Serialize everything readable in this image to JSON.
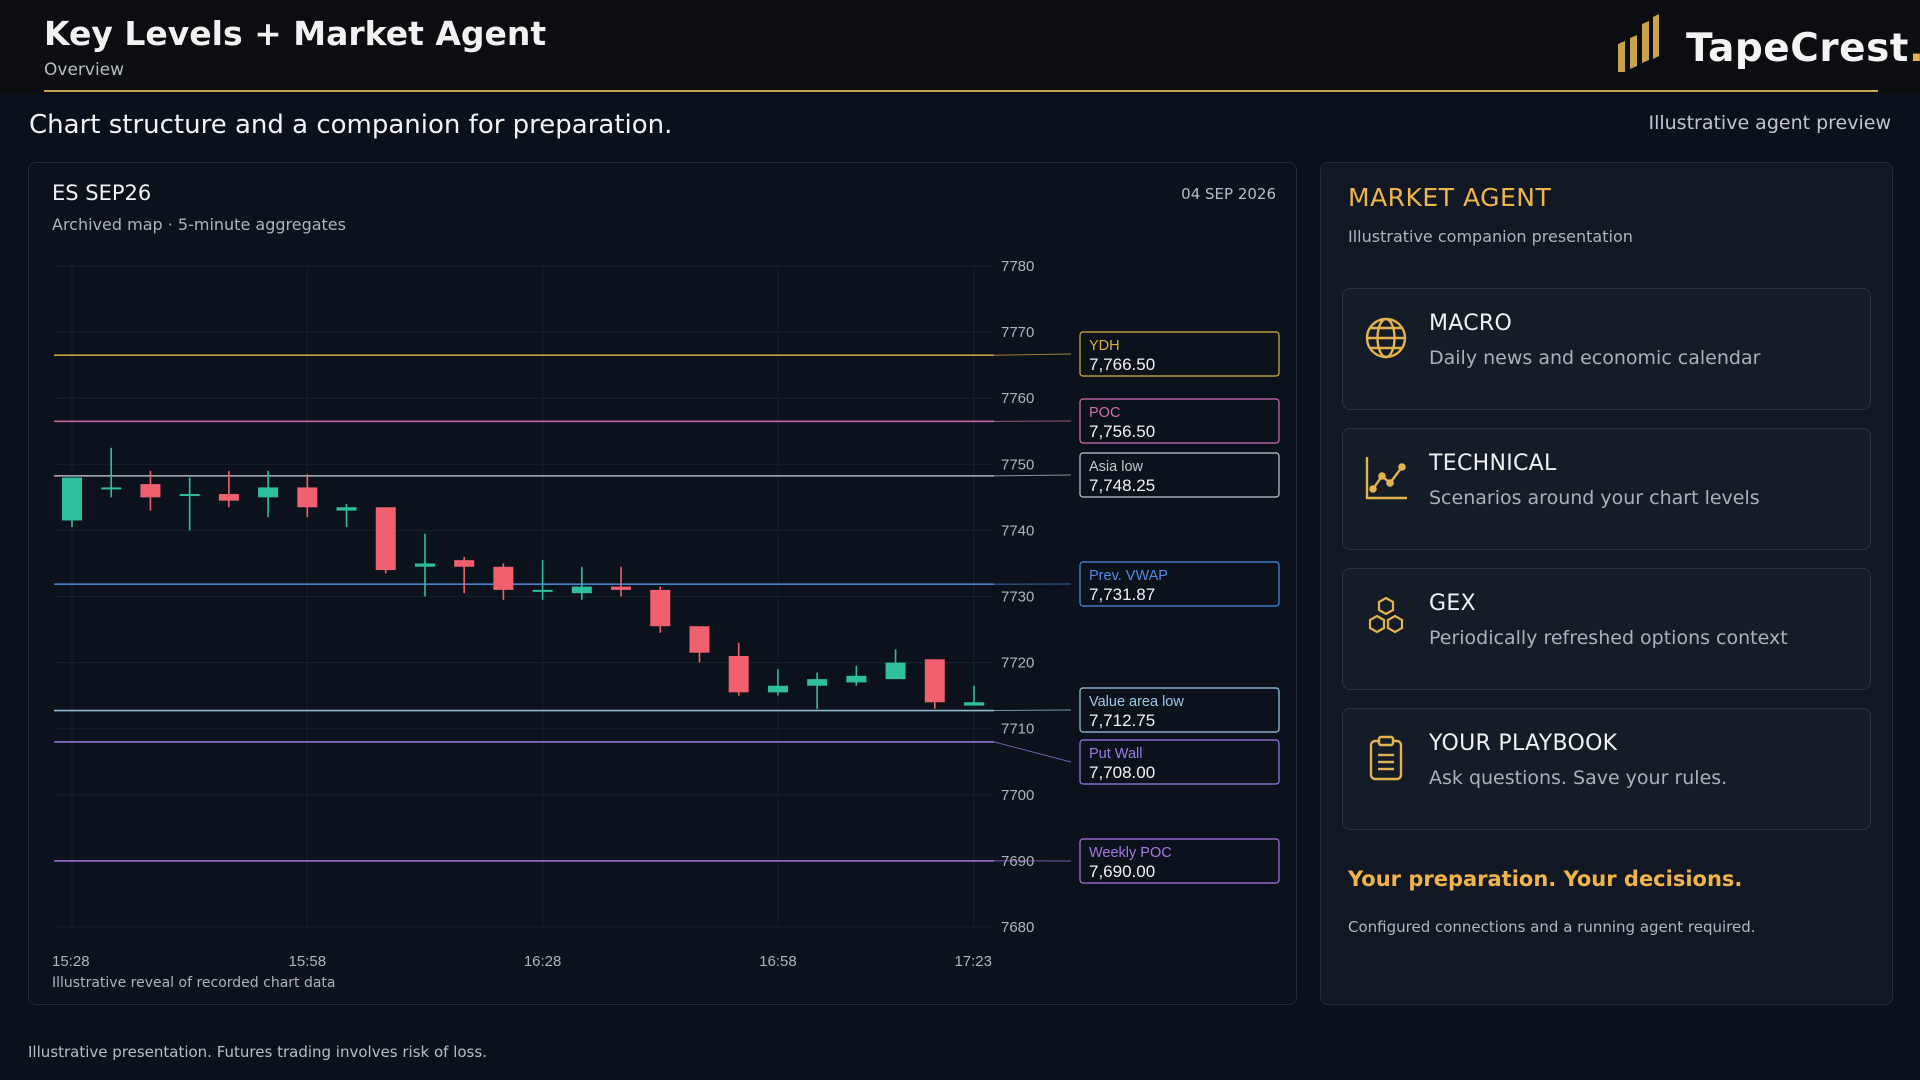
{
  "header": {
    "title": "Key Levels + Market Agent",
    "subtitle": "Overview",
    "logo_text": "TapeCrest",
    "logo_dot": "."
  },
  "tagline": "Chart structure and a companion for preparation.",
  "preview_label": "Illustrative agent preview",
  "chart_panel": {
    "symbol": "ES SEP26",
    "subtitle": "Archived map · 5-minute aggregates",
    "date": "04 SEP 2026",
    "footnote": "Illustrative reveal of recorded chart data"
  },
  "chart_data": {
    "type": "candlestick",
    "ylim": [
      7680,
      7780
    ],
    "y_ticks": [
      7780,
      7770,
      7760,
      7750,
      7740,
      7730,
      7720,
      7710,
      7700,
      7690,
      7680
    ],
    "x_tick_labels": [
      "15:28",
      "15:58",
      "16:28",
      "16:58",
      "17:23"
    ],
    "candles": [
      {
        "o": 7741.5,
        "h": 7748.0,
        "l": 7740.5,
        "c": 7748.0
      },
      {
        "o": 7746.5,
        "h": 7752.5,
        "l": 7745.0,
        "c": 7746.5
      },
      {
        "o": 7747.0,
        "h": 7749.0,
        "l": 7743.0,
        "c": 7745.0
      },
      {
        "o": 7745.5,
        "h": 7748.0,
        "l": 7740.0,
        "c": 7745.5
      },
      {
        "o": 7745.5,
        "h": 7749.0,
        "l": 7743.5,
        "c": 7744.5
      },
      {
        "o": 7745.0,
        "h": 7749.0,
        "l": 7742.0,
        "c": 7746.5
      },
      {
        "o": 7746.5,
        "h": 7748.5,
        "l": 7742.0,
        "c": 7743.5
      },
      {
        "o": 7743.0,
        "h": 7744.0,
        "l": 7740.5,
        "c": 7743.5
      },
      {
        "o": 7743.5,
        "h": 7743.5,
        "l": 7733.5,
        "c": 7734.0
      },
      {
        "o": 7734.5,
        "h": 7739.5,
        "l": 7730.0,
        "c": 7735.0
      },
      {
        "o": 7735.5,
        "h": 7736.0,
        "l": 7730.5,
        "c": 7734.5
      },
      {
        "o": 7734.5,
        "h": 7735.0,
        "l": 7729.5,
        "c": 7731.0
      },
      {
        "o": 7731.0,
        "h": 7735.5,
        "l": 7729.5,
        "c": 7731.0
      },
      {
        "o": 7730.5,
        "h": 7734.5,
        "l": 7729.5,
        "c": 7731.5
      },
      {
        "o": 7731.5,
        "h": 7734.5,
        "l": 7730.0,
        "c": 7731.0
      },
      {
        "o": 7731.0,
        "h": 7731.5,
        "l": 7724.5,
        "c": 7725.5
      },
      {
        "o": 7725.5,
        "h": 7725.5,
        "l": 7720.0,
        "c": 7721.5
      },
      {
        "o": 7721.0,
        "h": 7723.0,
        "l": 7715.0,
        "c": 7715.5
      },
      {
        "o": 7715.5,
        "h": 7719.0,
        "l": 7715.0,
        "c": 7716.5
      },
      {
        "o": 7716.5,
        "h": 7718.5,
        "l": 7713.0,
        "c": 7717.5
      },
      {
        "o": 7717.0,
        "h": 7719.5,
        "l": 7716.5,
        "c": 7718.0
      },
      {
        "o": 7717.5,
        "h": 7722.0,
        "l": 7717.5,
        "c": 7720.0
      },
      {
        "o": 7720.5,
        "h": 7720.5,
        "l": 7713.0,
        "c": 7714.0
      },
      {
        "o": 7713.5,
        "h": 7716.5,
        "l": 7713.5,
        "c": 7714.0
      }
    ],
    "levels": [
      {
        "name": "YDH",
        "value": 7766.5,
        "label": "7,766.50",
        "color": "#d9b23f"
      },
      {
        "name": "POC",
        "value": 7756.5,
        "label": "7,756.50",
        "color": "#d46fb6"
      },
      {
        "name": "Asia low",
        "value": 7748.25,
        "label": "7,748.25",
        "color": "#c4c8ce"
      },
      {
        "name": "Prev. VWAP",
        "value": 7731.87,
        "label": "7,731.87",
        "color": "#4f8de0"
      },
      {
        "name": "Value area low",
        "value": 7712.75,
        "label": "7,712.75",
        "color": "#9ec9e6"
      },
      {
        "name": "Put Wall",
        "value": 7708.0,
        "label": "7,708.00",
        "color": "#9b7ee6"
      },
      {
        "name": "Weekly POC",
        "value": 7690.0,
        "label": "7,690.00",
        "color": "#a777e6"
      }
    ],
    "colors": {
      "up": "#2fbf9a",
      "down": "#f0606e"
    }
  },
  "agent": {
    "title": "MARKET AGENT",
    "subtitle": "Illustrative companion presentation",
    "cards": [
      {
        "title": "MACRO",
        "desc": "Daily news and economic calendar",
        "icon": "globe-icon"
      },
      {
        "title": "TECHNICAL",
        "desc": "Scenarios around your chart levels",
        "icon": "line-chart-icon"
      },
      {
        "title": "GEX",
        "desc": "Periodically refreshed options context",
        "icon": "hexagons-icon"
      },
      {
        "title": "YOUR PLAYBOOK",
        "desc": "Ask questions. Save your rules.",
        "icon": "clipboard-icon"
      }
    ],
    "cta": "Your preparation. Your decisions.",
    "note": "Configured connections and a running agent required."
  },
  "disclaimer": "Illustrative presentation. Futures trading involves risk of loss."
}
